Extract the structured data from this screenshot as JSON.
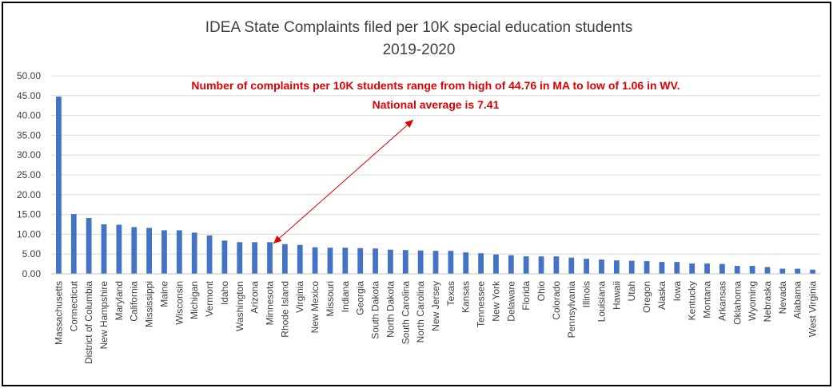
{
  "chart_data": {
    "type": "bar",
    "title": "IDEA State Complaints filed per 10K special education students",
    "subtitle": "2019-2020",
    "xlabel": "",
    "ylabel": "",
    "ylim": [
      0,
      50
    ],
    "yticks": [
      "0.00",
      "5.00",
      "10.00",
      "15.00",
      "20.00",
      "25.00",
      "30.00",
      "35.00",
      "40.00",
      "45.00",
      "50.00"
    ],
    "grid": true,
    "bar_color": "#4472c4",
    "categories": [
      "Massachusetts",
      "Connecticut",
      "District of Columbia",
      "New Hampshire",
      "Maryland",
      "California",
      "Mississippi",
      "Maine",
      "Wisconsin",
      "Michigan",
      "Vermont",
      "Idaho",
      "Washington",
      "Arizona",
      "Minnesota",
      "Rhode Island",
      "Virginia",
      "New Mexico",
      "Missouri",
      "Indiana",
      "Georgia",
      "South Dakota",
      "North Dakota",
      "South Carolina",
      "North Carolina",
      "New Jersey",
      "Texas",
      "Kansas",
      "Tennessee",
      "New York",
      "Delaware",
      "Florida",
      "Ohio",
      "Colorado",
      "Pennsylvania",
      "Illinois",
      "Louisiana",
      "Hawaii",
      "Utah",
      "Oregon",
      "Alaska",
      "Iowa",
      "Kentucky",
      "Montana",
      "Arkansas",
      "Oklahoma",
      "Wyoming",
      "Nebraska",
      "Nevada",
      "Alabama",
      "West Virginia"
    ],
    "values": [
      44.76,
      15.1,
      14.1,
      12.5,
      12.4,
      11.8,
      11.6,
      11.0,
      11.0,
      10.4,
      9.7,
      8.4,
      8.0,
      8.0,
      8.0,
      7.5,
      7.3,
      6.7,
      6.6,
      6.6,
      6.5,
      6.4,
      6.1,
      6.0,
      5.9,
      5.8,
      5.8,
      5.4,
      5.2,
      4.9,
      4.7,
      4.4,
      4.4,
      4.4,
      4.1,
      3.8,
      3.6,
      3.4,
      3.3,
      3.2,
      3.0,
      3.0,
      2.6,
      2.6,
      2.5,
      2.0,
      2.0,
      1.7,
      1.3,
      1.3,
      1.06
    ],
    "annotations": [
      "Number of complaints per 10K students range from high of 44.76 in MA to low of 1.06 in WV.",
      "National average is 7.41"
    ],
    "annotation_color": "#e00000"
  }
}
